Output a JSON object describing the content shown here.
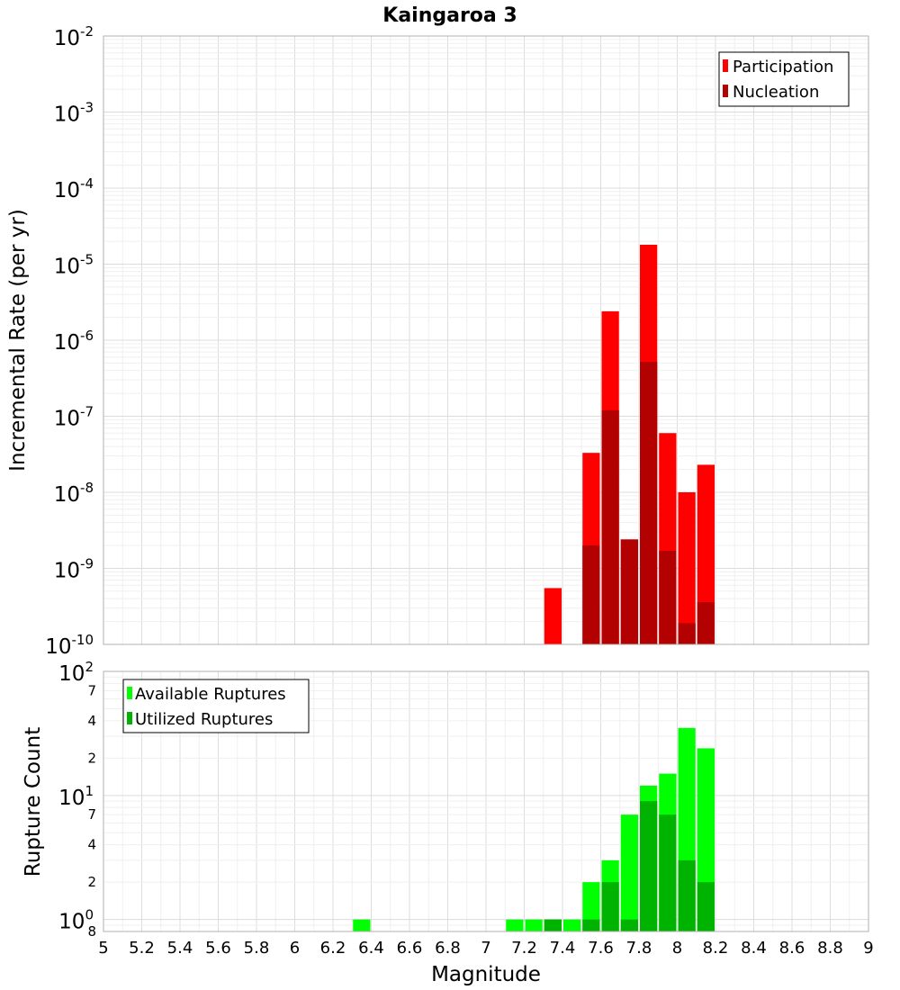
{
  "chart_data": [
    {
      "type": "bar",
      "title": "Kaingaroa 3",
      "xlabel": "Magnitude",
      "ylabel": "Incremental Rate (per yr)",
      "yscale": "log",
      "xlim": [
        5,
        9
      ],
      "ylim": [
        1e-10,
        0.01
      ],
      "y_tick_labels": [
        {
          "base": "10",
          "exp": "-10",
          "value": 1e-10
        },
        {
          "base": "10",
          "exp": "-9",
          "value": 1e-09
        },
        {
          "base": "10",
          "exp": "-8",
          "value": 1e-08
        },
        {
          "base": "10",
          "exp": "-7",
          "value": 1e-07
        },
        {
          "base": "10",
          "exp": "-6",
          "value": 1e-06
        },
        {
          "base": "10",
          "exp": "-5",
          "value": 1e-05
        },
        {
          "base": "10",
          "exp": "-4",
          "value": 0.0001
        },
        {
          "base": "10",
          "exp": "-3",
          "value": 0.001
        },
        {
          "base": "10",
          "exp": "-2",
          "value": 0.01
        }
      ],
      "legend": {
        "position": "top-right",
        "items": [
          {
            "label": "Participation",
            "color": "#ff0000"
          },
          {
            "label": "Nucleation",
            "color": "#b30000"
          }
        ]
      },
      "series": [
        {
          "name": "Participation",
          "color": "#ff0000",
          "x": [
            7.35,
            7.55,
            7.65,
            7.75,
            7.85,
            7.95,
            8.05,
            8.15
          ],
          "values": [
            5.5e-10,
            3.3e-08,
            2.4e-06,
            2.4e-09,
            1.8e-05,
            6e-08,
            1e-08,
            2.3e-08
          ]
        },
        {
          "name": "Nucleation",
          "color": "#b30000",
          "x": [
            7.55,
            7.65,
            7.75,
            7.85,
            7.95,
            8.05,
            8.15
          ],
          "values": [
            2e-09,
            1.2e-07,
            2.4e-09,
            5.2e-07,
            1.7e-09,
            1.9e-10,
            3.6e-10
          ]
        }
      ]
    },
    {
      "type": "bar",
      "xlabel": "Magnitude",
      "ylabel": "Rupture Count",
      "yscale": "log",
      "xlim": [
        5,
        9
      ],
      "ylim": [
        0.8,
        100
      ],
      "x_tick_labels": [
        "5",
        "5.2",
        "5.4",
        "5.6",
        "5.8",
        "6",
        "6.2",
        "6.4",
        "6.6",
        "6.8",
        "7",
        "7.2",
        "7.4",
        "7.6",
        "7.8",
        "8",
        "8.2",
        "8.4",
        "8.6",
        "8.8",
        "9"
      ],
      "y_decade_labels": [
        {
          "base": "10",
          "exp": "0",
          "value": 1
        },
        {
          "base": "10",
          "exp": "1",
          "value": 10
        },
        {
          "base": "10",
          "exp": "2",
          "value": 100
        }
      ],
      "y_minor_labels": [
        {
          "label": "8",
          "value": 0.8
        },
        {
          "label": "2",
          "value": 2
        },
        {
          "label": "4",
          "value": 4
        },
        {
          "label": "7",
          "value": 7
        },
        {
          "label": "2",
          "value": 20
        },
        {
          "label": "4",
          "value": 40
        },
        {
          "label": "7",
          "value": 70
        }
      ],
      "legend": {
        "position": "top-left",
        "items": [
          {
            "label": "Available Ruptures",
            "color": "#00ff00"
          },
          {
            "label": "Utilized Ruptures",
            "color": "#00b300"
          }
        ]
      },
      "series": [
        {
          "name": "Available Ruptures",
          "color": "#00ff00",
          "x": [
            6.35,
            7.15,
            7.25,
            7.35,
            7.45,
            7.55,
            7.65,
            7.75,
            7.85,
            7.95,
            8.05,
            8.15
          ],
          "values": [
            1,
            1,
            1,
            1,
            1,
            2,
            3,
            7,
            12,
            15,
            35,
            24
          ]
        },
        {
          "name": "Utilized Ruptures",
          "color": "#00b300",
          "x": [
            7.35,
            7.55,
            7.65,
            7.75,
            7.85,
            7.95,
            8.05,
            8.15
          ],
          "values": [
            1,
            1,
            2,
            1,
            9,
            7,
            3,
            2
          ]
        }
      ]
    }
  ]
}
